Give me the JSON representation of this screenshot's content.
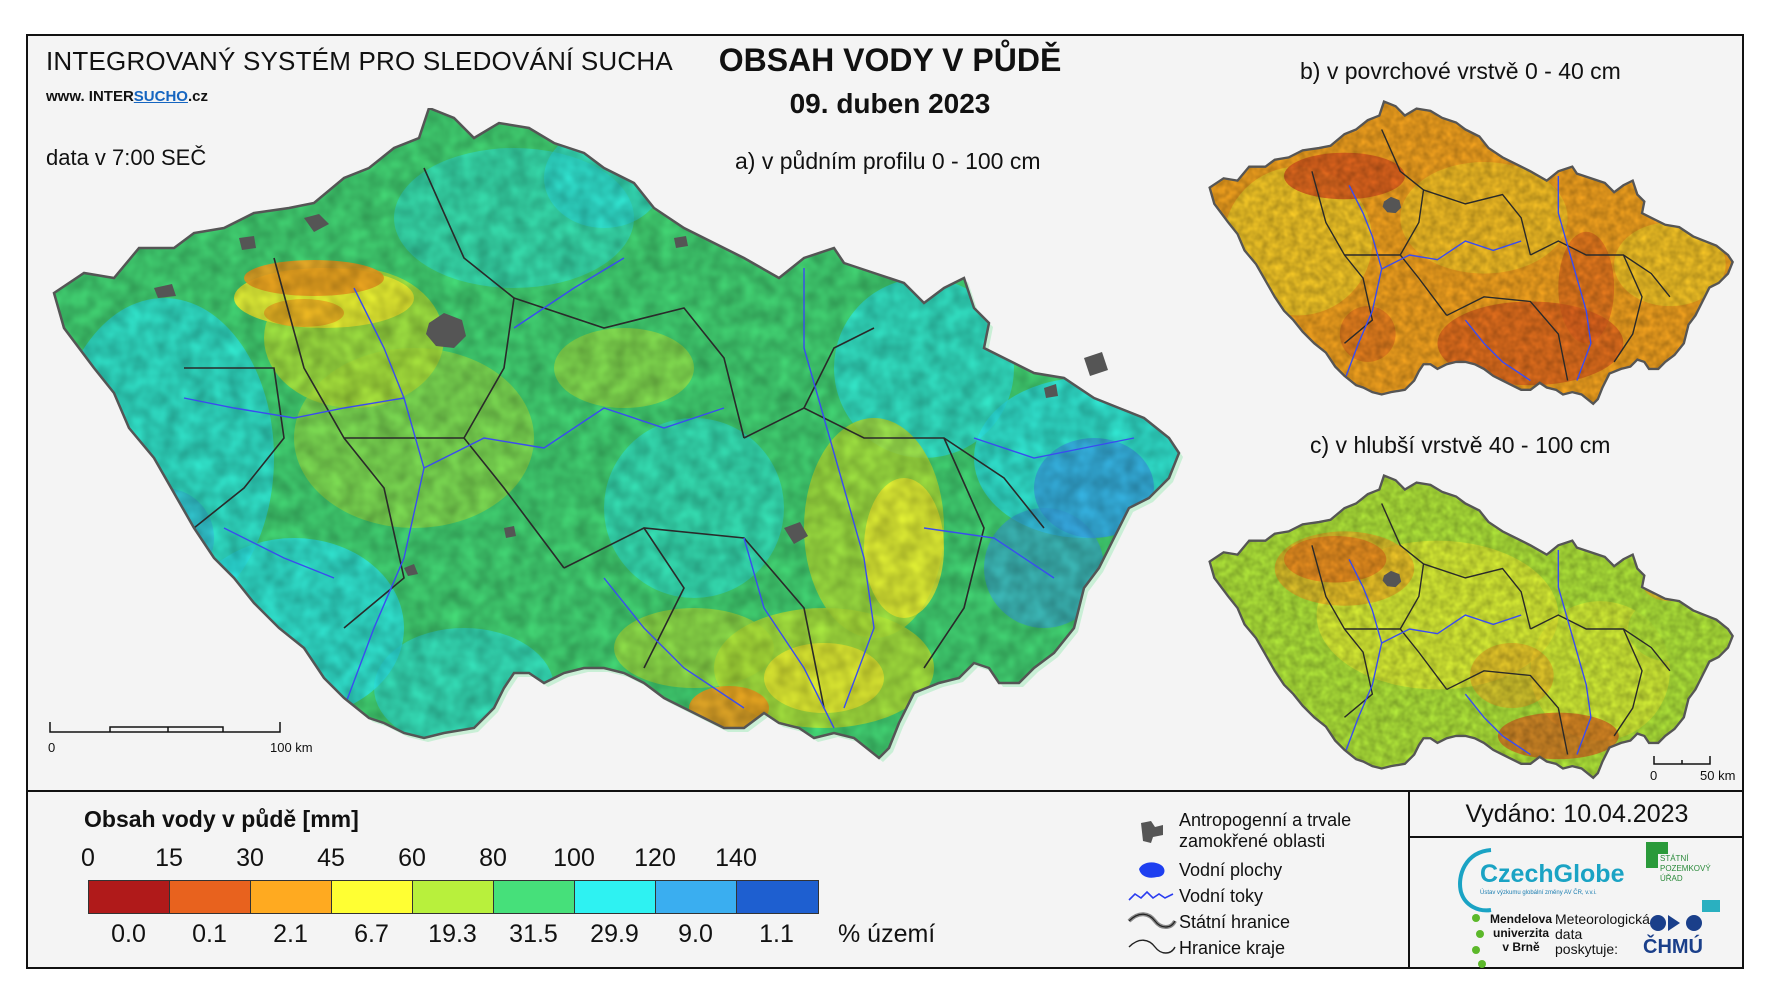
{
  "header": {
    "system_title": "INTEGROVANÝ SYSTÉM PRO SLEDOVÁNÍ SUCHA",
    "website_prefix": "www. ",
    "website_inter": "INTER",
    "website_sucho": "SUCHO",
    "website_suffix": ".cz",
    "data_time": "data v 7:00 SEČ",
    "main_title": "OBSAH VODY V PŮDĚ",
    "date": "09. duben 2023"
  },
  "maps": {
    "a_label": "a) v půdním profilu 0 - 100 cm",
    "b_label": "b) v povrchové vrstvě 0 - 40 cm",
    "c_label": "c) v hlubší vrstvě 40 - 100 cm",
    "scale_main": {
      "zero": "0",
      "end": "100 km"
    },
    "scale_small": {
      "zero": "0",
      "end": "50 km"
    }
  },
  "legend": {
    "title": "Obsah vody v půdě  [mm]",
    "ticks": [
      "0",
      "15",
      "30",
      "45",
      "60",
      "80",
      "100",
      "120",
      "140"
    ],
    "colors": [
      "#b01a1a",
      "#e8621e",
      "#ffaa20",
      "#ffff33",
      "#b8f03c",
      "#46e07a",
      "#2ef2f2",
      "#3aaef0",
      "#1e5fd0"
    ],
    "percent_values": [
      "0.0",
      "0.1",
      "2.1",
      "6.7",
      "19.3",
      "31.5",
      "29.9",
      "9.0",
      "1.1"
    ],
    "percent_unit": "% území"
  },
  "symbols": {
    "anthropogenic": "Antropogenní a trvale zamokřené oblasti",
    "water_bodies": "Vodní plochy",
    "streams": "Vodní toky",
    "state_border": "Státní hranice",
    "region_border": "Hranice kraje"
  },
  "issued": {
    "label": "Vydáno: 10.04.2023"
  },
  "logos": {
    "czechglobe": "CzechGlobe",
    "czechglobe_sub": "Ústav výzkumu globální změny AV ČR, v.v.i.",
    "spu": "STÁTNÍ POZEMKOVÝ ÚŘAD",
    "mendel": "Mendelova univerzita v Brně",
    "meteo": "Meteorologická data poskytuje:",
    "chmu": "ČHMÚ"
  }
}
